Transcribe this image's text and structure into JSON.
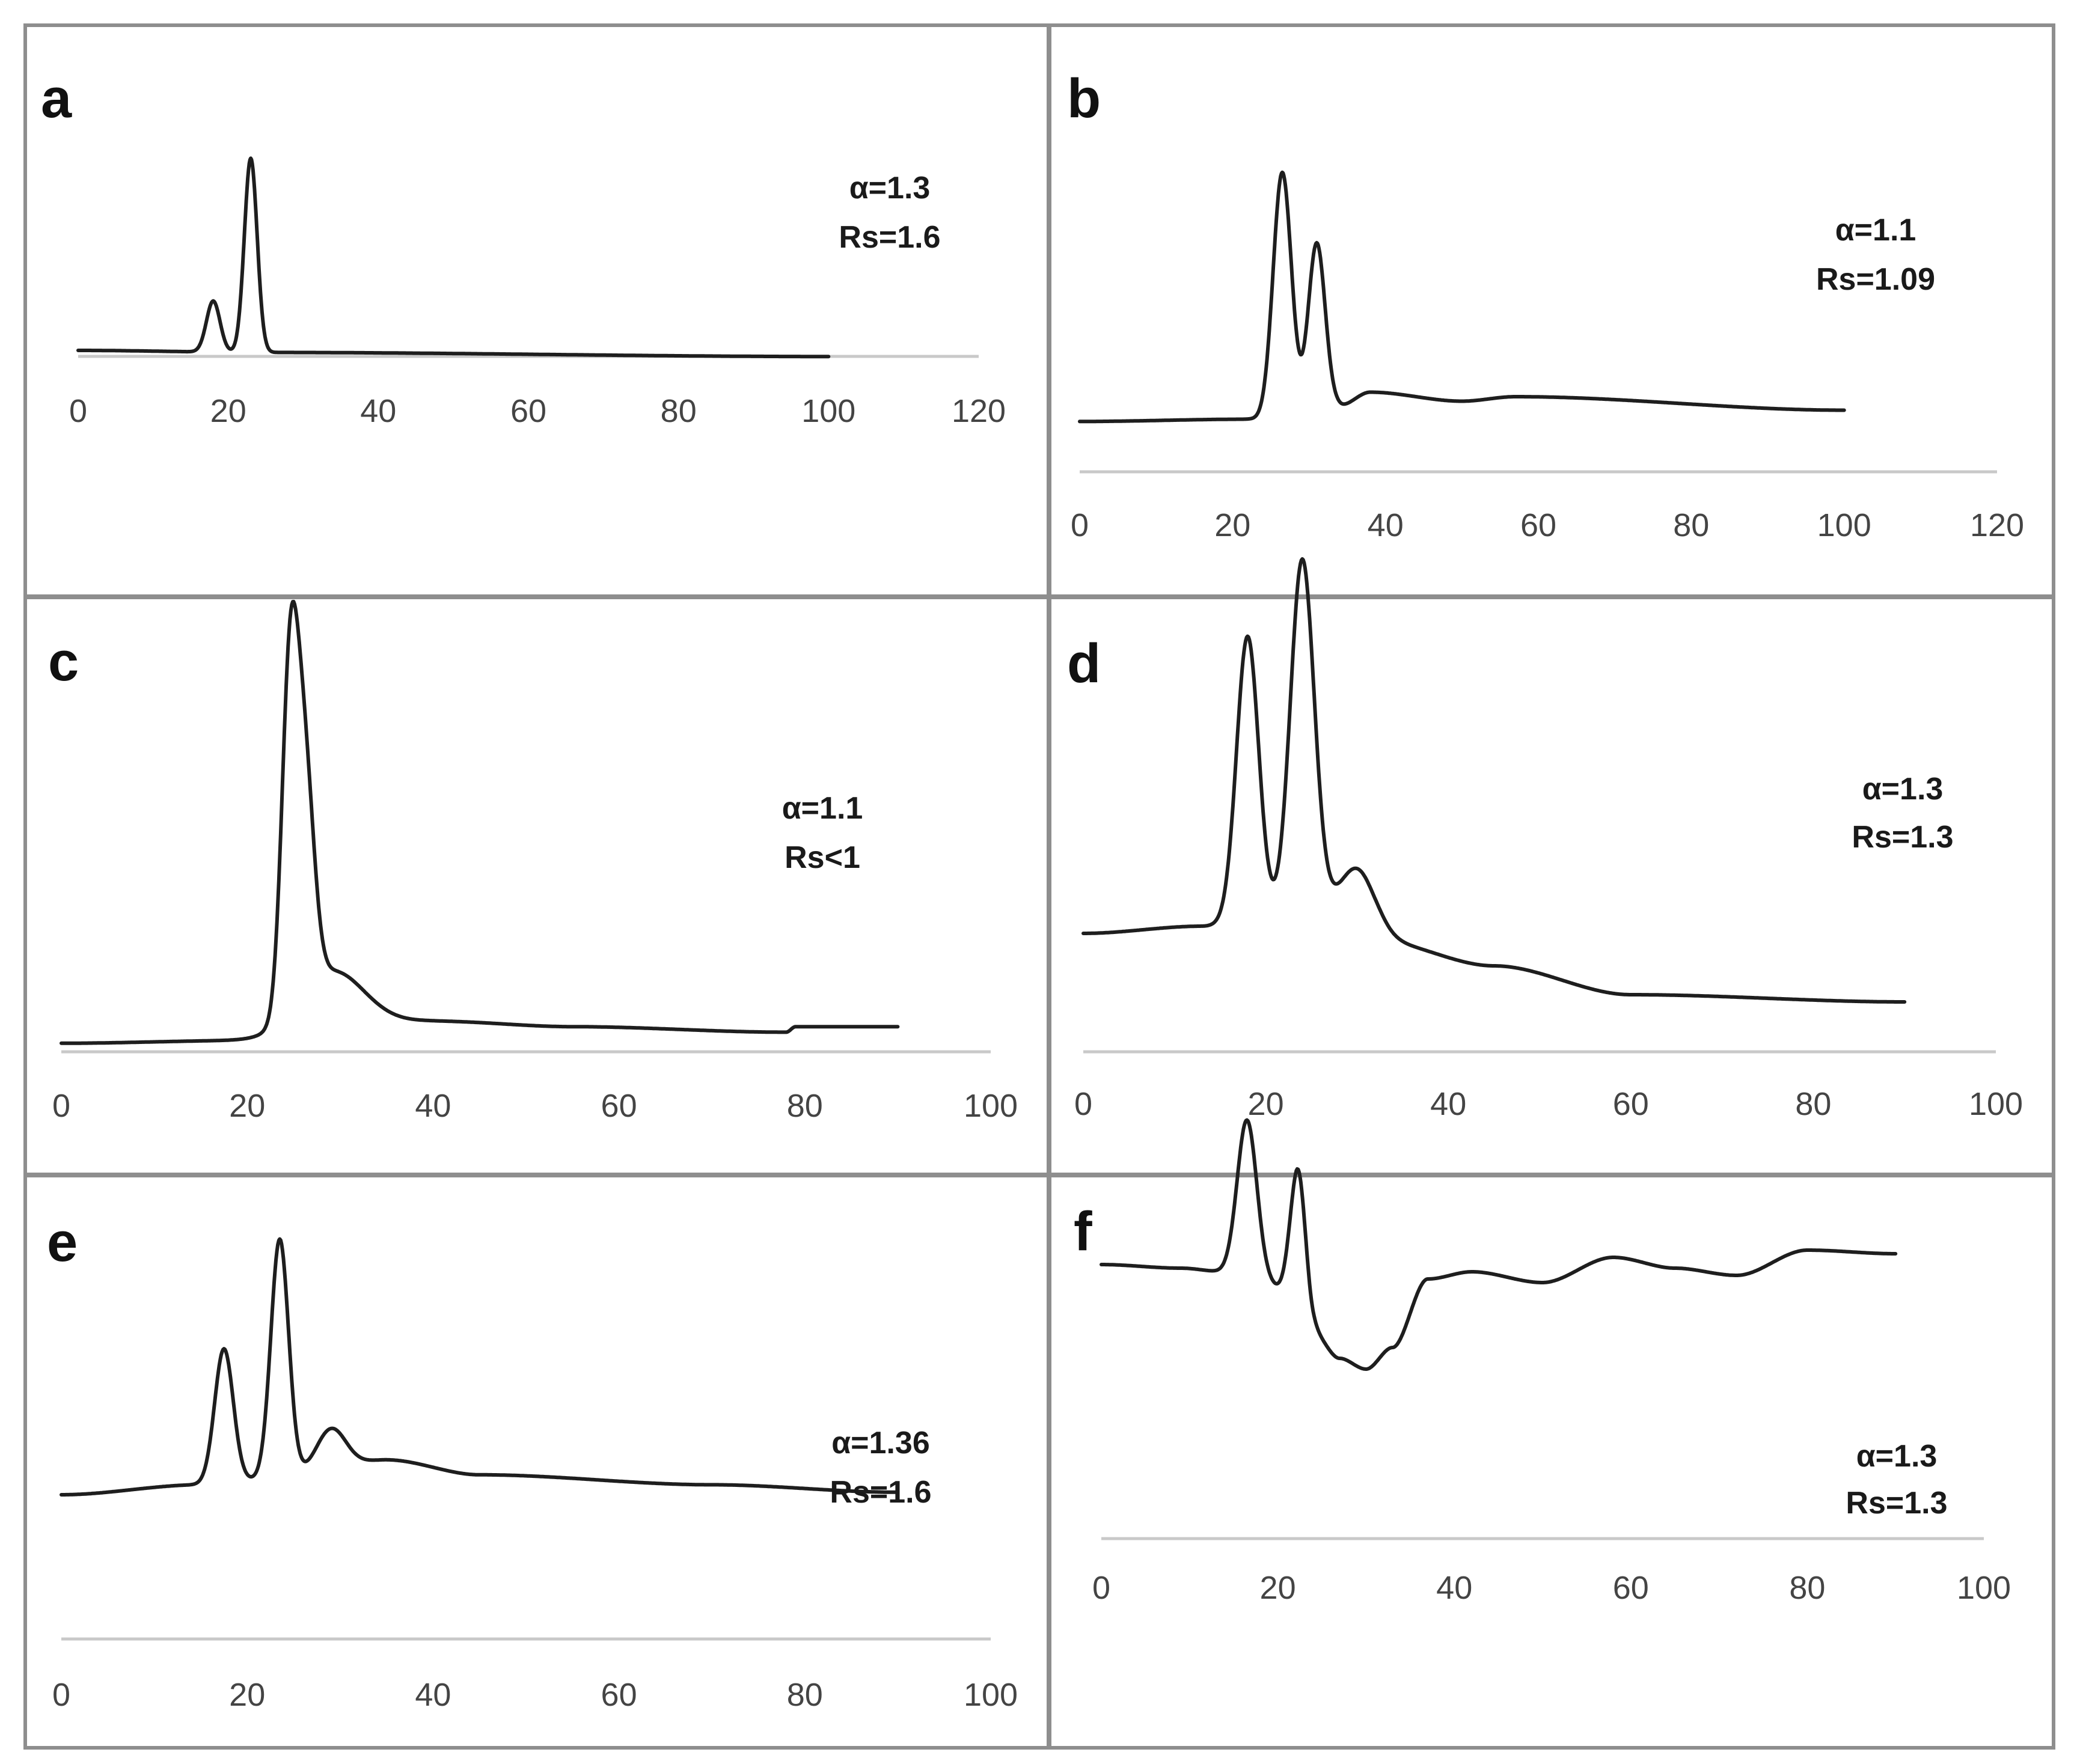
{
  "colors": {
    "trace": "#1e1e1e",
    "axis": "#c9c9c9",
    "frame": "#8e8e8e"
  },
  "chart_data": [
    {
      "type": "line",
      "label": "a",
      "xlim": [
        0,
        120
      ],
      "ylim": [
        0,
        1
      ],
      "xticks": [
        "0",
        "20",
        "40",
        "60",
        "80",
        "100",
        "120"
      ],
      "annotations": [
        "α=1.3",
        "Rs=1.6"
      ],
      "baseline": [
        [
          0,
          0.05
        ],
        [
          25,
          0.04
        ],
        [
          100,
          0.02
        ]
      ],
      "peaks": [
        [
          18,
          0.25,
          0.9
        ],
        [
          23,
          0.95,
          0.85
        ]
      ]
    },
    {
      "type": "line",
      "label": "b",
      "xlim": [
        0,
        120
      ],
      "ylim": [
        0,
        1
      ],
      "xticks": [
        "0",
        "20",
        "40",
        "60",
        "80",
        "100",
        "120"
      ],
      "annotations": [
        "α=1.1",
        "Rs=1.09"
      ],
      "baseline": [
        [
          0,
          0.05
        ],
        [
          22,
          0.06
        ],
        [
          25,
          0.05
        ],
        [
          34,
          0.12
        ],
        [
          38,
          0.18
        ],
        [
          50,
          0.14
        ],
        [
          57,
          0.16
        ],
        [
          100,
          0.1
        ]
      ],
      "peaks": [
        [
          26.5,
          1.1,
          1.2
        ],
        [
          31,
          0.74,
          1.1
        ]
      ]
    },
    {
      "type": "line",
      "label": "c",
      "xlim": [
        0,
        100
      ],
      "ylim": [
        0,
        1
      ],
      "xticks": [
        "0",
        "20",
        "40",
        "60",
        "80",
        "100"
      ],
      "annotations": [
        "α=1.1",
        "Rs<1"
      ],
      "baseline": [
        [
          0,
          0.02
        ],
        [
          20,
          0.03
        ],
        [
          40,
          0.1
        ],
        [
          55,
          0.08
        ],
        [
          78,
          0.06
        ],
        [
          79,
          0.08
        ],
        [
          90,
          0.08
        ]
      ],
      "peaks": [
        [
          24.6,
          1.2,
          0.9
        ],
        [
          26.2,
          0.77,
          1.0
        ],
        [
          29,
          0.22,
          3.5
        ]
      ]
    },
    {
      "type": "line",
      "label": "d",
      "xlim": [
        0,
        100
      ],
      "ylim": [
        0,
        1
      ],
      "xticks": [
        "0",
        "20",
        "40",
        "60",
        "80",
        "100"
      ],
      "annotations": [
        "α=1.3",
        "Rs=1.3"
      ],
      "baseline": [
        [
          0,
          0.32
        ],
        [
          13,
          0.34
        ],
        [
          20,
          0.37
        ],
        [
          26,
          0.38
        ],
        [
          32,
          0.3
        ],
        [
          45,
          0.23
        ],
        [
          60,
          0.15
        ],
        [
          90,
          0.13
        ]
      ],
      "peaks": [
        [
          18,
          0.78,
          1.2
        ],
        [
          24,
          0.98,
          1.3
        ],
        [
          30.2,
          0.18,
          1.9
        ]
      ]
    },
    {
      "type": "line",
      "label": "e",
      "xlim": [
        0,
        100
      ],
      "ylim": [
        0,
        1
      ],
      "xticks": [
        "0",
        "20",
        "40",
        "60",
        "80",
        "100"
      ],
      "annotations": [
        "α=1.36",
        "Rs=1.6"
      ],
      "baseline": [
        [
          0,
          0.2
        ],
        [
          15,
          0.24
        ],
        [
          26,
          0.28
        ],
        [
          35,
          0.34
        ],
        [
          45,
          0.28
        ],
        [
          70,
          0.24
        ],
        [
          90,
          0.21
        ]
      ],
      "peaks": [
        [
          17.5,
          0.54,
          1.0
        ],
        [
          23.5,
          0.95,
          0.95
        ],
        [
          29,
          0.17,
          1.6
        ]
      ]
    },
    {
      "type": "line",
      "label": "f",
      "xlim": [
        0,
        100
      ],
      "ylim": [
        0,
        1
      ],
      "xticks": [
        "0",
        "20",
        "40",
        "60",
        "80",
        "100"
      ],
      "annotations": [
        "α=1.3",
        "Rs=1.3"
      ],
      "baseline": [
        [
          0,
          0.66
        ],
        [
          9,
          0.65
        ],
        [
          14,
          0.64
        ],
        [
          17,
          0.63
        ],
        [
          22,
          0.57
        ],
        [
          24,
          0.47
        ],
        [
          27,
          0.4
        ],
        [
          30,
          0.37
        ],
        [
          33,
          0.43
        ],
        [
          37,
          0.62
        ],
        [
          42,
          0.64
        ],
        [
          50,
          0.61
        ],
        [
          58,
          0.68
        ],
        [
          65,
          0.65
        ],
        [
          72,
          0.63
        ],
        [
          80,
          0.7
        ],
        [
          90,
          0.69
        ]
      ],
      "peaks": [
        [
          16.5,
          0.43,
          1.1
        ],
        [
          22.3,
          0.36,
          0.9
        ]
      ]
    }
  ]
}
